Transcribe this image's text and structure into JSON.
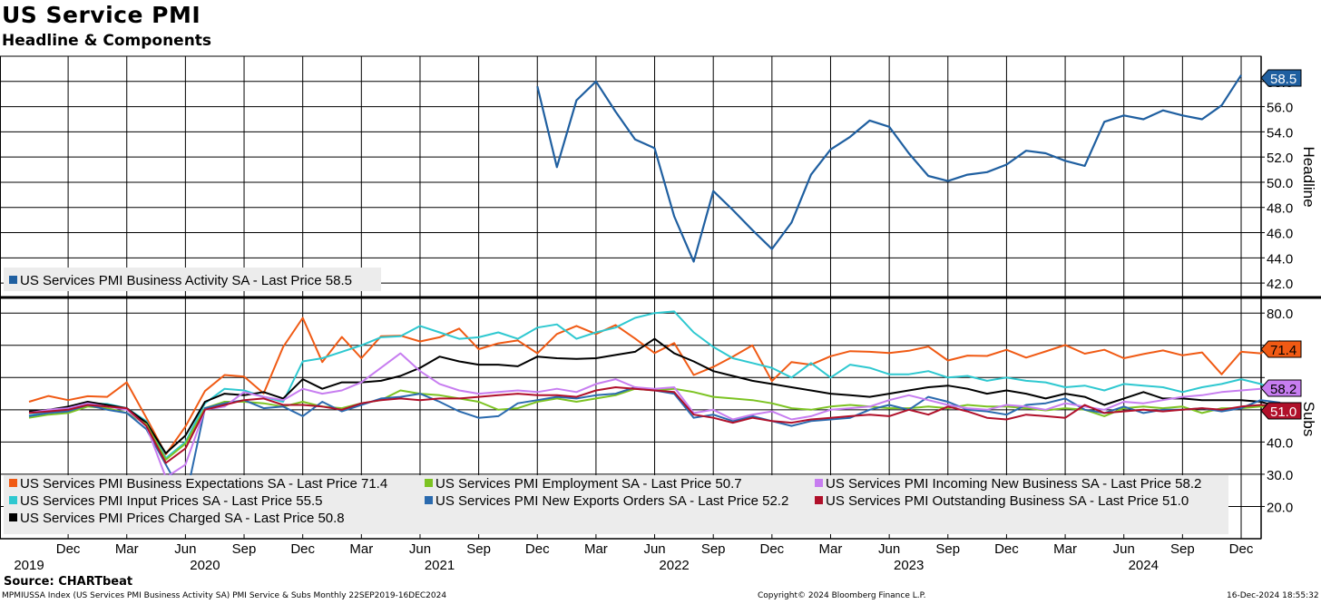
{
  "header": {
    "title": "US Service PMI",
    "subtitle": "Headline & Components"
  },
  "footer": {
    "source": "Source: CHARTbeat",
    "index_note": "MPMIUSSA Index (US Services PMI Business Activity SA) PMI Service & Subs  Monthly 22SEP2019-16DEC2024",
    "copyright": "Copyright© 2024 Bloomberg Finance L.P.",
    "timestamp": "16-Dec-2024 18:55:32"
  },
  "colors": {
    "headline": "#1f5fa0",
    "expectations": "#f05a14",
    "input_prices": "#2ec8d0",
    "prices_charged": "#000000",
    "employment": "#7cc322",
    "new_exports": "#2a6aae",
    "incoming_new_business": "#c77df0",
    "outstanding_business": "#b0102a"
  },
  "chart_data": [
    {
      "type": "line",
      "panel": "top",
      "y_axis_title": "Headline",
      "ylim": [
        41,
        60
      ],
      "y_ticks": [
        "42.0",
        "44.0",
        "46.0",
        "48.0",
        "50.0",
        "52.0",
        "54.0",
        "56.0",
        "58.0"
      ],
      "x_start": "2019-10",
      "x_end": "2024-12",
      "legend_position": "bottom-left",
      "series": [
        {
          "name": "US Services PMI Business Activity SA - Last Price 58.5",
          "color_key": "headline",
          "last_value_label": "58.5",
          "x_start": "2021-12",
          "values": [
            57.6,
            51.2,
            56.5,
            58.0,
            55.6,
            53.4,
            52.7,
            47.3,
            43.7,
            49.3,
            47.8,
            46.2,
            44.7,
            46.8,
            50.6,
            52.6,
            53.6,
            54.9,
            54.4,
            52.3,
            50.5,
            50.1,
            50.6,
            50.8,
            51.4,
            52.5,
            52.3,
            51.7,
            51.3,
            54.8,
            55.3,
            55.0,
            55.7,
            55.3,
            55.0,
            56.1,
            58.5
          ]
        }
      ]
    },
    {
      "type": "line",
      "panel": "bottom",
      "y_axis_title": "Subs",
      "ylim": [
        10,
        84
      ],
      "y_ticks": [
        "20.0",
        "30.0",
        "40.0",
        "80.0"
      ],
      "x_start": "2019-10",
      "x_end": "2024-12",
      "x_ticks": [
        "Dec",
        "Mar",
        "Jun",
        "Sep",
        "Dec",
        "Mar",
        "Jun",
        "Sep",
        "Dec",
        "Mar",
        "Jun",
        "Sep",
        "Dec",
        "Mar",
        "Jun",
        "Sep",
        "Dec",
        "Mar",
        "Jun",
        "Sep",
        "Dec"
      ],
      "x_tick_dates": [
        "2019-12",
        "2020-03",
        "2020-06",
        "2020-09",
        "2020-12",
        "2021-03",
        "2021-06",
        "2021-09",
        "2021-12",
        "2022-03",
        "2022-06",
        "2022-09",
        "2022-12",
        "2023-03",
        "2023-06",
        "2023-09",
        "2023-12",
        "2024-03",
        "2024-06",
        "2024-09",
        "2024-12"
      ],
      "year_labels": [
        {
          "year": "2019",
          "date": "2019-10"
        },
        {
          "year": "2020",
          "date": "2020-07"
        },
        {
          "year": "2021",
          "date": "2021-07"
        },
        {
          "year": "2022",
          "date": "2022-07"
        },
        {
          "year": "2023",
          "date": "2023-07"
        },
        {
          "year": "2024",
          "date": "2024-07"
        }
      ],
      "legend_position": "bottom-left",
      "series": [
        {
          "name": "US Services PMI Business Expectations SA - Last Price 71.4",
          "color_key": "expectations",
          "last_value_label": "71.4",
          "values": [
            52.5,
            54.3,
            53.0,
            54.2,
            54.0,
            58.5,
            47.5,
            36.2,
            44.8,
            55.8,
            60.8,
            60.3,
            55.1,
            69.5,
            78.5,
            64.8,
            72.6,
            66.0,
            72.8,
            73.0,
            71.2,
            72.5,
            75.2,
            68.8,
            70.6,
            71.5,
            67.5,
            73.5,
            76.0,
            73.5,
            76.3,
            72.1,
            67.6,
            70.7,
            60.8,
            63.3,
            66.5,
            70.0,
            58.9,
            64.8,
            64.0,
            66.6,
            68.2,
            68.0,
            67.6,
            68.3,
            69.6,
            65.3,
            66.8,
            66.7,
            68.6,
            66.2,
            68.1,
            70.1,
            67.4,
            68.6,
            66.0,
            67.3,
            68.4,
            66.9,
            67.8,
            61.0,
            68.0,
            67.5,
            71.4
          ]
        },
        {
          "name": "US Services PMI Input Prices SA - Last Price 55.5",
          "color_key": "input_prices",
          "last_value_label": "55.5",
          "values": [
            48.2,
            49.5,
            50.0,
            52.0,
            51.8,
            50.5,
            46.5,
            35.0,
            40.0,
            52.0,
            56.5,
            56.0,
            54.0,
            52.5,
            65.0,
            66.0,
            68.0,
            70.0,
            72.5,
            72.8,
            76.0,
            74.0,
            72.0,
            72.5,
            74.0,
            72.0,
            75.5,
            76.5,
            72.0,
            74.0,
            75.5,
            78.5,
            80.0,
            80.5,
            74.0,
            69.5,
            66.0,
            64.5,
            63.0,
            60.0,
            64.5,
            60.0,
            64.0,
            63.0,
            61.0,
            61.0,
            62.0,
            60.0,
            60.5,
            59.0,
            60.0,
            59.0,
            58.5,
            57.0,
            57.5,
            56.0,
            58.0,
            57.5,
            57.0,
            55.5,
            57.0,
            58.0,
            59.5,
            58.0,
            55.5
          ]
        },
        {
          "name": "US Services PMI Prices Charged SA - Last Price 50.8",
          "color_key": "prices_charged",
          "last_value_label": "50.8",
          "values": [
            49.5,
            50.0,
            51.0,
            52.5,
            51.5,
            50.5,
            46.0,
            36.5,
            42.0,
            52.5,
            55.0,
            54.5,
            55.5,
            53.5,
            59.5,
            56.5,
            58.5,
            58.5,
            59.0,
            60.5,
            63.0,
            66.5,
            65.0,
            64.0,
            64.0,
            63.5,
            66.5,
            66.0,
            65.8,
            66.0,
            67.0,
            68.0,
            72.0,
            67.5,
            65.0,
            62.0,
            60.5,
            59.0,
            58.0,
            57.0,
            56.0,
            55.0,
            54.5,
            54.0,
            55.0,
            56.0,
            57.0,
            57.5,
            56.5,
            55.0,
            56.0,
            55.0,
            53.5,
            55.0,
            54.0,
            51.5,
            53.5,
            55.5,
            53.5,
            53.5,
            53.0,
            53.0,
            53.0,
            52.5,
            50.8
          ]
        },
        {
          "name": "US Services PMI Employment SA - Last Price 50.7",
          "color_key": "employment",
          "last_value_label": "50.7",
          "values": [
            47.5,
            48.5,
            49.0,
            51.0,
            50.5,
            49.0,
            45.5,
            34.5,
            39.5,
            50.5,
            52.5,
            52.5,
            52.0,
            51.0,
            52.5,
            51.0,
            50.5,
            52.0,
            53.0,
            56.0,
            55.0,
            54.5,
            53.5,
            52.5,
            50.0,
            50.5,
            52.5,
            53.5,
            52.5,
            53.5,
            54.5,
            56.5,
            56.0,
            56.5,
            55.5,
            54.0,
            53.5,
            53.0,
            52.0,
            50.5,
            50.0,
            51.0,
            51.5,
            51.0,
            50.5,
            50.5,
            51.0,
            50.5,
            51.5,
            51.0,
            51.0,
            50.5,
            49.8,
            50.5,
            50.0,
            48.0,
            50.5,
            51.0,
            50.5,
            51.0,
            49.0,
            50.5,
            50.5,
            51.0,
            50.7
          ]
        },
        {
          "name": "US Services PMI New Exports Orders SA - Last Price 52.2",
          "color_key": "new_exports",
          "last_value_label": "52.2",
          "values": [
            48.0,
            49.0,
            49.5,
            51.5,
            50.0,
            49.0,
            44.0,
            33.0,
            22.0,
            50.5,
            52.0,
            53.0,
            50.5,
            51.0,
            48.0,
            52.5,
            49.5,
            51.5,
            53.5,
            54.0,
            55.0,
            52.5,
            49.5,
            47.5,
            48.0,
            52.0,
            53.0,
            54.0,
            53.5,
            54.5,
            55.0,
            57.0,
            56.0,
            55.0,
            47.5,
            48.5,
            46.5,
            48.0,
            46.5,
            45.0,
            46.5,
            47.0,
            47.5,
            50.0,
            51.5,
            50.0,
            54.0,
            52.5,
            50.0,
            49.5,
            48.5,
            51.5,
            52.0,
            53.5,
            50.0,
            49.0,
            51.0,
            49.0,
            50.0,
            50.0,
            50.5,
            49.5,
            50.5,
            53.0,
            52.2
          ]
        },
        {
          "name": "US Services PMI Incoming New Business SA - Last Price 58.2",
          "color_key": "incoming_new_business",
          "last_value_label": "58.2",
          "values": [
            49.0,
            50.0,
            50.5,
            52.0,
            51.0,
            50.0,
            45.0,
            29.0,
            33.0,
            50.0,
            51.0,
            55.5,
            54.0,
            53.0,
            56.5,
            55.0,
            56.0,
            58.5,
            63.0,
            67.5,
            62.0,
            58.0,
            56.0,
            55.0,
            55.5,
            56.0,
            55.5,
            56.5,
            55.5,
            58.0,
            59.5,
            57.0,
            56.5,
            57.0,
            49.0,
            50.0,
            47.0,
            48.5,
            49.5,
            47.0,
            48.0,
            50.0,
            50.5,
            51.0,
            53.0,
            54.5,
            53.0,
            51.5,
            50.5,
            50.0,
            51.5,
            51.0,
            50.0,
            52.0,
            51.0,
            50.0,
            52.5,
            52.0,
            53.0,
            54.0,
            54.5,
            55.5,
            56.0,
            56.5,
            58.2
          ]
        },
        {
          "name": "US Services PMI Outstanding Business SA - Last Price 51.0",
          "color_key": "outstanding_business",
          "last_value_label": "51.0",
          "values": [
            49.0,
            49.5,
            50.0,
            51.5,
            51.0,
            50.5,
            45.0,
            33.5,
            38.0,
            50.0,
            51.5,
            53.0,
            53.5,
            51.5,
            51.5,
            51.0,
            50.0,
            52.0,
            53.0,
            53.5,
            53.0,
            53.5,
            53.5,
            54.0,
            54.5,
            55.0,
            54.5,
            54.5,
            54.0,
            56.0,
            57.0,
            56.5,
            56.0,
            55.5,
            48.5,
            47.5,
            46.0,
            47.5,
            46.5,
            46.0,
            47.0,
            47.5,
            48.0,
            48.5,
            48.0,
            50.0,
            48.5,
            51.0,
            49.5,
            47.5,
            47.0,
            48.5,
            48.0,
            47.5,
            51.5,
            49.0,
            49.5,
            50.0,
            49.5,
            50.0,
            50.5,
            50.0,
            51.0,
            51.5,
            51.0
          ]
        }
      ]
    }
  ]
}
